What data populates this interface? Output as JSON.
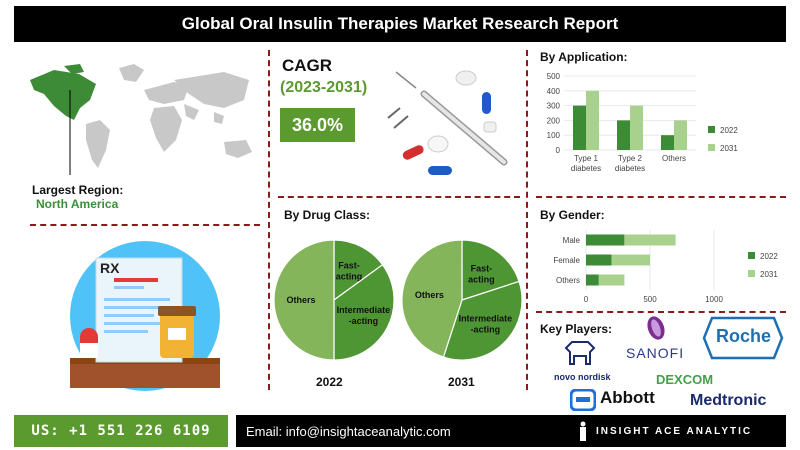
{
  "title": "Global Oral Insulin Therapies Market Research Report",
  "region": {
    "label": "Largest Region:",
    "value": "North America"
  },
  "cagr": {
    "title": "CAGR",
    "years": "(2023-2031)",
    "value": "36.0%"
  },
  "drug_class": {
    "title": "By Drug Class:",
    "years": [
      "2022",
      "2031"
    ],
    "segments": [
      "Fast-acting",
      "Intermediate-acting",
      "Others"
    ]
  },
  "application": {
    "title": "By Application:"
  },
  "gender": {
    "title": "By Gender:"
  },
  "key_players": {
    "title": "Key Players:",
    "names": [
      "novo nordisk",
      "SANOFI",
      "Roche",
      "DEXCOM",
      "Abbott",
      "Medtronic"
    ]
  },
  "rx_label": "RX",
  "footer": {
    "phone": "US: +1 551 226 6109",
    "email": "Email: info@insightaceanalytic.com",
    "brand": "INSIGHT ACE ANALYTIC"
  },
  "colors": {
    "dark_green": "#3d8a37",
    "light_green": "#a9d18e",
    "pie_light": "#84b55a",
    "pie_dark": "#4e9634",
    "accent": "#5a9a2e"
  },
  "chart_data": [
    {
      "type": "pie",
      "title": "2022",
      "labels": [
        "Fast-acting",
        "Intermediate-acting",
        "Others"
      ],
      "values": [
        15,
        35,
        50
      ]
    },
    {
      "type": "pie",
      "title": "2031",
      "labels": [
        "Fast-acting",
        "Intermediate-acting",
        "Others"
      ],
      "values": [
        20,
        35,
        45
      ]
    },
    {
      "type": "bar",
      "title": "By Application:",
      "categories": [
        "Type 1 diabetes",
        "Type 2 diabetes",
        "Others"
      ],
      "series": [
        {
          "name": "2022",
          "values": [
            300,
            200,
            100
          ]
        },
        {
          "name": "2031",
          "values": [
            400,
            300,
            200
          ]
        }
      ],
      "ylim": [
        0,
        500
      ],
      "yticks": [
        0,
        100,
        200,
        300,
        400,
        500
      ],
      "legend": "right"
    },
    {
      "type": "bar",
      "orientation": "horizontal",
      "stacked": true,
      "title": "By Gender:",
      "categories": [
        "Male",
        "Female",
        "Others"
      ],
      "series": [
        {
          "name": "2022",
          "values": [
            300,
            200,
            100
          ]
        },
        {
          "name": "2031",
          "values": [
            400,
            300,
            200
          ]
        }
      ],
      "xlim": [
        0,
        1000
      ],
      "xticks": [
        0,
        500,
        1000
      ],
      "legend": "right"
    }
  ]
}
